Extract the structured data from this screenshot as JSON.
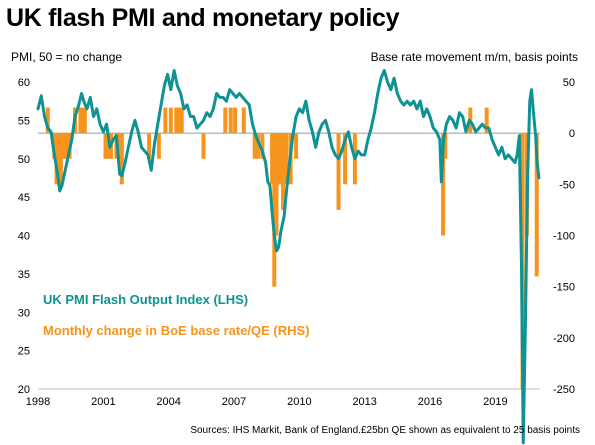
{
  "title": "UK flash PMI and monetary policy",
  "left_axis_label": "PMI, 50 = no change",
  "right_axis_label": "Base rate movement m/m, basis points",
  "source": "Sources: IHS Markit, Bank of England.£25bn QE shown as equivalent to 25 basis points",
  "colors": {
    "pmi": "#0e9294",
    "rate": "#f7941d",
    "zero_line": "#a6a6a6",
    "axis": "#bfbfbf"
  },
  "chart_data": {
    "type": "bar+line",
    "title": "UK flash PMI and monetary policy",
    "x_ticks": [
      "1998",
      "2001",
      "2004",
      "2007",
      "2010",
      "2013",
      "2016",
      "2019"
    ],
    "xlim": [
      1998.0,
      2021.05
    ],
    "left_axis": {
      "label": "PMI, 50 = no change",
      "ylim": [
        20,
        60
      ],
      "ticks": [
        "20",
        "25",
        "30",
        "35",
        "40",
        "45",
        "50",
        "55",
        "60"
      ]
    },
    "right_axis": {
      "label": "Base rate movement m/m, basis points",
      "ylim": [
        -250,
        50
      ],
      "ticks": [
        "-250",
        "-200",
        "-150",
        "-100",
        "-50",
        "0",
        "50"
      ]
    },
    "legend": [
      "UK PMI Flash Output Index (LHS)",
      "Monthly change in BoE base rate/QE (RHS)"
    ],
    "series": [
      {
        "name": "UK PMI Flash Output Index (LHS)",
        "type": "line",
        "axis": "left",
        "points": [
          [
            1998.0,
            56.5
          ],
          [
            1998.15,
            58.2
          ],
          [
            1998.3,
            55.5
          ],
          [
            1998.45,
            54.0
          ],
          [
            1998.6,
            53.5
          ],
          [
            1998.75,
            50.5
          ],
          [
            1998.9,
            48.0
          ],
          [
            1999.0,
            45.8
          ],
          [
            1999.1,
            46.5
          ],
          [
            1999.25,
            48.5
          ],
          [
            1999.4,
            50.5
          ],
          [
            1999.55,
            52.5
          ],
          [
            1999.7,
            55.5
          ],
          [
            1999.85,
            56.8
          ],
          [
            2000.0,
            58.5
          ],
          [
            2000.1,
            57.5
          ],
          [
            2000.25,
            56.5
          ],
          [
            2000.4,
            58.0
          ],
          [
            2000.55,
            55.5
          ],
          [
            2000.7,
            56.5
          ],
          [
            2000.85,
            54.5
          ],
          [
            2001.0,
            53.5
          ],
          [
            2001.15,
            54.5
          ],
          [
            2001.3,
            51.5
          ],
          [
            2001.45,
            52.5
          ],
          [
            2001.6,
            53.0
          ],
          [
            2001.75,
            48.0
          ],
          [
            2001.85,
            47.8
          ],
          [
            2002.0,
            49.5
          ],
          [
            2002.15,
            51.5
          ],
          [
            2002.3,
            53.5
          ],
          [
            2002.45,
            55.0
          ],
          [
            2002.6,
            53.5
          ],
          [
            2002.75,
            51.5
          ],
          [
            2002.9,
            51.0
          ],
          [
            2003.05,
            50.5
          ],
          [
            2003.2,
            48.5
          ],
          [
            2003.35,
            52.0
          ],
          [
            2003.5,
            54.5
          ],
          [
            2003.65,
            57.0
          ],
          [
            2003.8,
            59.5
          ],
          [
            2003.95,
            61.0
          ],
          [
            2004.1,
            59.0
          ],
          [
            2004.25,
            61.5
          ],
          [
            2004.4,
            59.5
          ],
          [
            2004.55,
            58.5
          ],
          [
            2004.7,
            56.5
          ],
          [
            2004.85,
            57.0
          ],
          [
            2005.0,
            55.5
          ],
          [
            2005.15,
            55.5
          ],
          [
            2005.3,
            54.0
          ],
          [
            2005.45,
            54.5
          ],
          [
            2005.6,
            55.0
          ],
          [
            2005.75,
            56.0
          ],
          [
            2005.9,
            55.5
          ],
          [
            2006.05,
            56.5
          ],
          [
            2006.2,
            58.5
          ],
          [
            2006.35,
            58.0
          ],
          [
            2006.5,
            58.0
          ],
          [
            2006.65,
            57.5
          ],
          [
            2006.8,
            59.0
          ],
          [
            2006.95,
            58.5
          ],
          [
            2007.1,
            58.0
          ],
          [
            2007.25,
            58.5
          ],
          [
            2007.4,
            58.0
          ],
          [
            2007.55,
            57.5
          ],
          [
            2007.7,
            57.0
          ],
          [
            2007.85,
            54.5
          ],
          [
            2008.0,
            53.0
          ],
          [
            2008.15,
            52.0
          ],
          [
            2008.3,
            51.0
          ],
          [
            2008.45,
            49.5
          ],
          [
            2008.55,
            47.0
          ],
          [
            2008.65,
            46.5
          ],
          [
            2008.75,
            43.0
          ],
          [
            2008.85,
            40.0
          ],
          [
            2008.95,
            38.0
          ],
          [
            2009.05,
            38.5
          ],
          [
            2009.15,
            40.5
          ],
          [
            2009.3,
            42.5
          ],
          [
            2009.4,
            45.5
          ],
          [
            2009.55,
            49.5
          ],
          [
            2009.7,
            53.0
          ],
          [
            2009.85,
            55.5
          ],
          [
            2010.0,
            56.5
          ],
          [
            2010.15,
            56.0
          ],
          [
            2010.3,
            57.5
          ],
          [
            2010.45,
            55.0
          ],
          [
            2010.6,
            53.5
          ],
          [
            2010.75,
            51.5
          ],
          [
            2010.9,
            53.5
          ],
          [
            2011.05,
            54.5
          ],
          [
            2011.2,
            55.0
          ],
          [
            2011.35,
            53.5
          ],
          [
            2011.5,
            51.5
          ],
          [
            2011.65,
            50.5
          ],
          [
            2011.8,
            50.0
          ],
          [
            2011.95,
            51.0
          ],
          [
            2012.1,
            52.5
          ],
          [
            2012.25,
            53.5
          ],
          [
            2012.4,
            51.5
          ],
          [
            2012.55,
            50.0
          ],
          [
            2012.7,
            51.0
          ],
          [
            2012.85,
            50.5
          ],
          [
            2013.0,
            50.5
          ],
          [
            2013.15,
            52.5
          ],
          [
            2013.3,
            54.0
          ],
          [
            2013.45,
            56.0
          ],
          [
            2013.6,
            58.5
          ],
          [
            2013.75,
            60.5
          ],
          [
            2013.9,
            61.5
          ],
          [
            2014.05,
            60.0
          ],
          [
            2014.2,
            59.0
          ],
          [
            2014.35,
            60.5
          ],
          [
            2014.5,
            58.5
          ],
          [
            2014.65,
            57.5
          ],
          [
            2014.8,
            57.0
          ],
          [
            2014.95,
            57.5
          ],
          [
            2015.1,
            57.0
          ],
          [
            2015.25,
            57.5
          ],
          [
            2015.4,
            56.5
          ],
          [
            2015.55,
            57.5
          ],
          [
            2015.7,
            55.5
          ],
          [
            2015.85,
            56.5
          ],
          [
            2016.0,
            55.5
          ],
          [
            2016.15,
            54.0
          ],
          [
            2016.3,
            53.5
          ],
          [
            2016.45,
            52.5
          ],
          [
            2016.52,
            47.0
          ],
          [
            2016.62,
            52.5
          ],
          [
            2016.75,
            54.5
          ],
          [
            2016.9,
            55.5
          ],
          [
            2017.05,
            55.0
          ],
          [
            2017.2,
            54.0
          ],
          [
            2017.35,
            56.0
          ],
          [
            2017.5,
            55.5
          ],
          [
            2017.65,
            53.5
          ],
          [
            2017.8,
            55.0
          ],
          [
            2017.95,
            54.5
          ],
          [
            2018.1,
            53.5
          ],
          [
            2018.25,
            54.0
          ],
          [
            2018.4,
            54.5
          ],
          [
            2018.55,
            54.0
          ],
          [
            2018.7,
            54.0
          ],
          [
            2018.85,
            52.5
          ],
          [
            2019.0,
            51.5
          ],
          [
            2019.15,
            50.5
          ],
          [
            2019.3,
            51.5
          ],
          [
            2019.45,
            50.0
          ],
          [
            2019.6,
            50.5
          ],
          [
            2019.75,
            50.0
          ],
          [
            2019.9,
            49.5
          ],
          [
            2020.0,
            50.5
          ],
          [
            2020.1,
            53.0
          ],
          [
            2020.2,
            36.0
          ],
          [
            2020.28,
            13.0
          ],
          [
            2020.38,
            28.5
          ],
          [
            2020.48,
            47.5
          ],
          [
            2020.58,
            57.5
          ],
          [
            2020.66,
            59.0
          ],
          [
            2020.75,
            56.0
          ],
          [
            2020.85,
            53.0
          ],
          [
            2020.92,
            49.5
          ],
          [
            2021.0,
            47.5
          ]
        ]
      },
      {
        "name": "Monthly change in BoE base rate/QE (RHS)",
        "type": "bar",
        "axis": "right",
        "points": [
          [
            1998.45,
            25
          ],
          [
            1998.75,
            -25
          ],
          [
            1998.85,
            -50
          ],
          [
            1998.95,
            -50
          ],
          [
            1999.05,
            -50
          ],
          [
            1999.15,
            -25
          ],
          [
            1999.3,
            -25
          ],
          [
            1999.45,
            -25
          ],
          [
            1999.7,
            25
          ],
          [
            1999.95,
            25
          ],
          [
            2000.05,
            25
          ],
          [
            2000.15,
            25
          ],
          [
            2001.1,
            -25
          ],
          [
            2001.2,
            -25
          ],
          [
            2001.35,
            -25
          ],
          [
            2001.6,
            -25
          ],
          [
            2001.7,
            -25
          ],
          [
            2001.75,
            -25
          ],
          [
            2001.85,
            -50
          ],
          [
            2003.1,
            -25
          ],
          [
            2003.55,
            -25
          ],
          [
            2003.85,
            25
          ],
          [
            2004.1,
            25
          ],
          [
            2004.35,
            25
          ],
          [
            2004.45,
            25
          ],
          [
            2004.6,
            25
          ],
          [
            2005.6,
            -25
          ],
          [
            2006.6,
            25
          ],
          [
            2006.85,
            25
          ],
          [
            2007.05,
            25
          ],
          [
            2007.45,
            25
          ],
          [
            2007.95,
            -25
          ],
          [
            2008.1,
            -25
          ],
          [
            2008.3,
            -25
          ],
          [
            2008.75,
            -50
          ],
          [
            2008.85,
            -150
          ],
          [
            2008.95,
            -100
          ],
          [
            2009.05,
            -50
          ],
          [
            2009.15,
            -50
          ],
          [
            2009.25,
            -75
          ],
          [
            2009.4,
            -50
          ],
          [
            2009.6,
            -50
          ],
          [
            2009.85,
            -25
          ],
          [
            2011.8,
            -75
          ],
          [
            2012.1,
            -50
          ],
          [
            2012.55,
            -50
          ],
          [
            2016.6,
            -100
          ],
          [
            2016.7,
            -25
          ],
          [
            2017.85,
            25
          ],
          [
            2018.6,
            25
          ],
          [
            2020.2,
            -65
          ],
          [
            2020.25,
            -250
          ],
          [
            2020.45,
            -100
          ],
          [
            2020.9,
            -140
          ]
        ]
      }
    ]
  }
}
